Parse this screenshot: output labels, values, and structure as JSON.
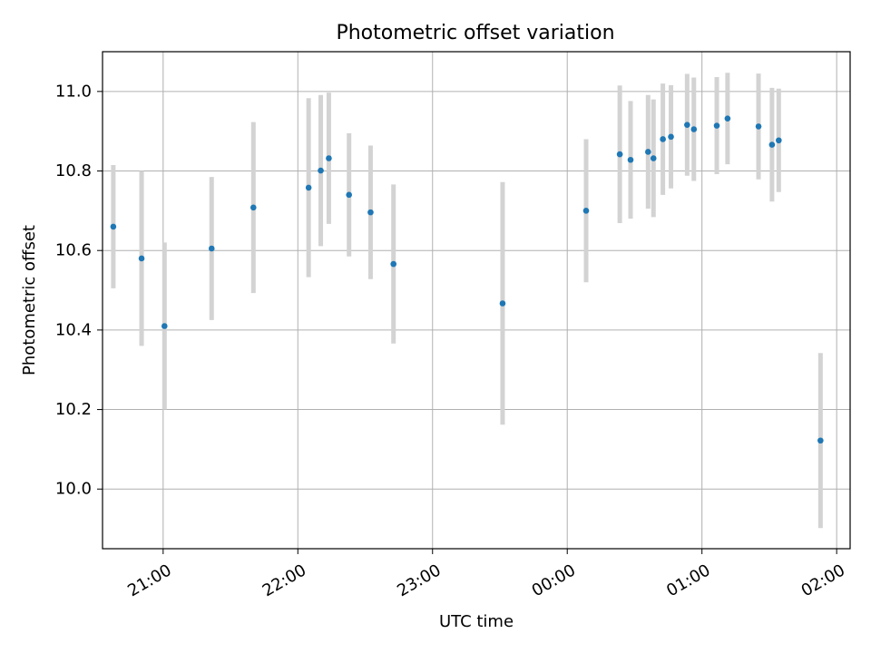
{
  "chart_data": {
    "type": "scatter",
    "title": "Photometric offset variation",
    "xlabel": "UTC time",
    "ylabel": "Photometric offset",
    "x_unit": "hours after 20:00 UTC",
    "xlim": [
      0.55,
      6.1
    ],
    "ylim": [
      9.85,
      11.1
    ],
    "x_ticks": [
      {
        "value": 1,
        "label": "21:00"
      },
      {
        "value": 2,
        "label": "22:00"
      },
      {
        "value": 3,
        "label": "23:00"
      },
      {
        "value": 4,
        "label": "00:00"
      },
      {
        "value": 5,
        "label": "01:00"
      },
      {
        "value": 6,
        "label": "02:00"
      }
    ],
    "y_ticks": [
      {
        "value": 10.0,
        "label": "10.0"
      },
      {
        "value": 10.2,
        "label": "10.2"
      },
      {
        "value": 10.4,
        "label": "10.4"
      },
      {
        "value": 10.6,
        "label": "10.6"
      },
      {
        "value": 10.8,
        "label": "10.8"
      },
      {
        "value": 11.0,
        "label": "11.0"
      }
    ],
    "grid": true,
    "marker_color": "#1f77b4",
    "errorbar_color": "#d3d3d3",
    "points": [
      {
        "x": 0.63,
        "y": 10.66,
        "err": 0.155
      },
      {
        "x": 0.84,
        "y": 10.58,
        "err": 0.22
      },
      {
        "x": 1.01,
        "y": 10.41,
        "err": 0.21
      },
      {
        "x": 1.36,
        "y": 10.605,
        "err": 0.18
      },
      {
        "x": 1.67,
        "y": 10.708,
        "err": 0.215
      },
      {
        "x": 2.08,
        "y": 10.758,
        "err": 0.225
      },
      {
        "x": 2.17,
        "y": 10.801,
        "err": 0.19
      },
      {
        "x": 2.23,
        "y": 10.832,
        "err": 0.165
      },
      {
        "x": 2.38,
        "y": 10.74,
        "err": 0.155
      },
      {
        "x": 2.54,
        "y": 10.696,
        "err": 0.168
      },
      {
        "x": 2.71,
        "y": 10.566,
        "err": 0.2
      },
      {
        "x": 3.52,
        "y": 10.467,
        "err": 0.305
      },
      {
        "x": 4.14,
        "y": 10.7,
        "err": 0.18
      },
      {
        "x": 4.39,
        "y": 10.842,
        "err": 0.173
      },
      {
        "x": 4.47,
        "y": 10.828,
        "err": 0.148
      },
      {
        "x": 4.6,
        "y": 10.848,
        "err": 0.143
      },
      {
        "x": 4.64,
        "y": 10.832,
        "err": 0.148
      },
      {
        "x": 4.71,
        "y": 10.88,
        "err": 0.14
      },
      {
        "x": 4.77,
        "y": 10.886,
        "err": 0.13
      },
      {
        "x": 4.89,
        "y": 10.916,
        "err": 0.128
      },
      {
        "x": 4.94,
        "y": 10.905,
        "err": 0.13
      },
      {
        "x": 5.11,
        "y": 10.914,
        "err": 0.122
      },
      {
        "x": 5.19,
        "y": 10.932,
        "err": 0.115
      },
      {
        "x": 5.42,
        "y": 10.912,
        "err": 0.133
      },
      {
        "x": 5.52,
        "y": 10.866,
        "err": 0.143
      },
      {
        "x": 5.57,
        "y": 10.877,
        "err": 0.13
      },
      {
        "x": 5.88,
        "y": 10.122,
        "err": 0.22
      }
    ]
  }
}
